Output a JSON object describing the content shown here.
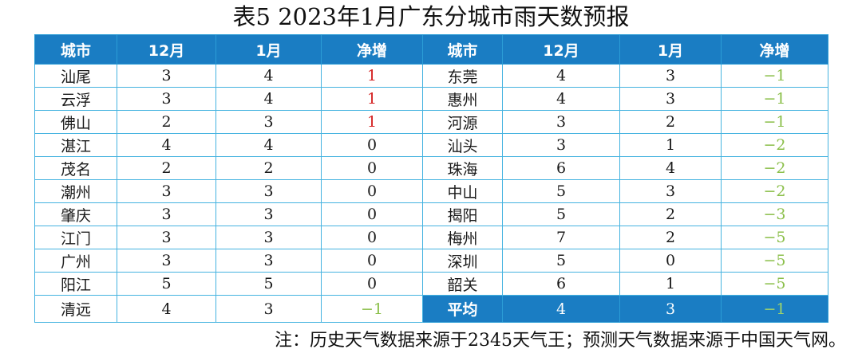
{
  "title": "表5  2023年1月广东分城市雨天数预报",
  "headers": [
    "城市",
    "12月",
    "1月",
    "净增",
    "城市",
    "12月",
    "1月",
    "净增"
  ],
  "left_rows": [
    {
      "city": "汕尾",
      "dec": "3",
      "jan": "4",
      "net": "1"
    },
    {
      "city": "云浮",
      "dec": "3",
      "jan": "4",
      "net": "1"
    },
    {
      "city": "佛山",
      "dec": "2",
      "jan": "3",
      "net": "1"
    },
    {
      "city": "湛江",
      "dec": "4",
      "jan": "4",
      "net": "0"
    },
    {
      "city": "茂名",
      "dec": "2",
      "jan": "2",
      "net": "0"
    },
    {
      "city": "潮州",
      "dec": "3",
      "jan": "3",
      "net": "0"
    },
    {
      "city": "肇庆",
      "dec": "3",
      "jan": "3",
      "net": "0"
    },
    {
      "city": "江门",
      "dec": "3",
      "jan": "3",
      "net": "0"
    },
    {
      "city": "广州",
      "dec": "3",
      "jan": "3",
      "net": "0"
    },
    {
      "city": "阳江",
      "dec": "5",
      "jan": "5",
      "net": "0"
    },
    {
      "city": "清远",
      "dec": "4",
      "jan": "3",
      "net": "−1"
    }
  ],
  "right_rows": [
    {
      "city": "东莞",
      "dec": "4",
      "jan": "3",
      "net": "−1"
    },
    {
      "city": "惠州",
      "dec": "4",
      "jan": "3",
      "net": "−1"
    },
    {
      "city": "河源",
      "dec": "3",
      "jan": "2",
      "net": "−1"
    },
    {
      "city": "汕头",
      "dec": "3",
      "jan": "1",
      "net": "−2"
    },
    {
      "city": "珠海",
      "dec": "6",
      "jan": "4",
      "net": "−2"
    },
    {
      "city": "中山",
      "dec": "5",
      "jan": "3",
      "net": "−2"
    },
    {
      "city": "揭阳",
      "dec": "5",
      "jan": "2",
      "net": "−3"
    },
    {
      "city": "梅州",
      "dec": "7",
      "jan": "2",
      "net": "−5"
    },
    {
      "city": "深圳",
      "dec": "5",
      "jan": "0",
      "net": "−5"
    },
    {
      "city": "韶关",
      "dec": "6",
      "jan": "1",
      "net": "−5"
    }
  ],
  "average": {
    "label": "平均",
    "dec": "4",
    "jan": "3",
    "net": "−1"
  },
  "note": "注：历史天气数据来源于2345天气王；预测天气数据来源于中国天气网。",
  "colors": {
    "header_bg": "#1a7dc3",
    "border": "#45b3e0",
    "positive": "#d42020",
    "negative": "#8bbf4a"
  }
}
